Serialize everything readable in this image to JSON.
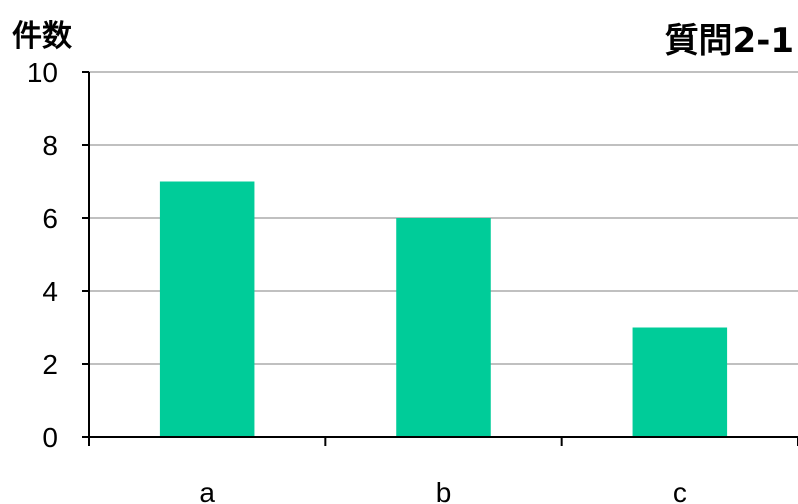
{
  "chart_data": {
    "type": "bar",
    "title": "質問2-1",
    "ylabel": "件数",
    "xlabel": "",
    "categories": [
      "a",
      "b",
      "c"
    ],
    "values": [
      7,
      6,
      3
    ],
    "ylim": [
      0,
      10
    ],
    "yticks": [
      0,
      2,
      4,
      6,
      8,
      10
    ],
    "grid": true,
    "bar_color": "#00CC99",
    "axis_color": "#000000",
    "grid_color": "#808080"
  }
}
